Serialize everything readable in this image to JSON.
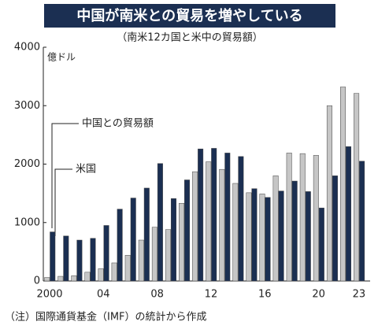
{
  "chart_data": {
    "type": "bar",
    "title": "中国が南米との貿易を増やしている",
    "subtitle": "（南米12カ国と米中の貿易額）",
    "y_axis_label": "億ドル",
    "note": "（注）国際通貨基金（IMF）の統計から作成",
    "categories": [
      "2000",
      null,
      null,
      null,
      "04",
      null,
      null,
      null,
      "08",
      null,
      null,
      null,
      "12",
      null,
      null,
      null,
      "16",
      null,
      null,
      null,
      "20",
      null,
      null,
      "23"
    ],
    "series": [
      {
        "name": "米国",
        "color": "#c6c6c6",
        "values": [
          60,
          80,
          90,
          150,
          210,
          310,
          440,
          700,
          920,
          880,
          1330,
          1870,
          2040,
          1910,
          1670,
          1510,
          1490,
          1800,
          2190,
          2180,
          2150,
          3000,
          3320,
          3210
        ]
      },
      {
        "name": "中国との貿易額",
        "color": "#1b2f52",
        "values": [
          840,
          770,
          700,
          730,
          950,
          1230,
          1420,
          1590,
          2010,
          1410,
          1730,
          2260,
          2270,
          2190,
          2130,
          1580,
          1430,
          1540,
          1710,
          1530,
          1250,
          1800,
          2300,
          2050
        ]
      }
    ],
    "ylim": [
      0,
      4000
    ],
    "yticks": [
      0,
      1000,
      2000,
      3000,
      4000
    ],
    "grid": false
  }
}
